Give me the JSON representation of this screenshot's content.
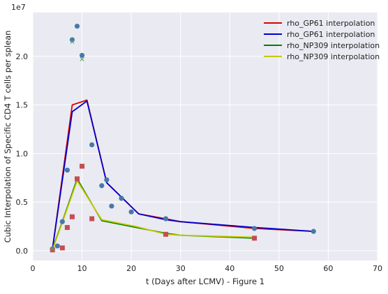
{
  "chart_data": {
    "type": "line",
    "xlabel": "t (Days after LCMV) - Figure 1",
    "ylabel": "Cubic Interpolation of Specific CD4 T cells per splean",
    "y_scale_label": "1e7",
    "xlim": [
      0,
      70
    ],
    "ylim": [
      -0.1,
      2.45
    ],
    "x_ticks": [
      0,
      10,
      20,
      30,
      40,
      50,
      60,
      70
    ],
    "x_tick_labels": [
      "0",
      "10",
      "20",
      "30",
      "40",
      "50",
      "60",
      "70"
    ],
    "y_ticks": [
      0.0,
      0.5,
      1.0,
      1.5,
      2.0
    ],
    "y_tick_labels": [
      "0.0",
      "0.5",
      "1.0",
      "1.5",
      "2.0"
    ],
    "grid": true,
    "legend_position": "top-right",
    "series": [
      {
        "name": "rho_GP61 interpolation",
        "color": "#e00000",
        "x": [
          4,
          8,
          11,
          15,
          21.5,
          27,
          30,
          45,
          57
        ],
        "y": [
          0.02,
          1.5,
          1.55,
          0.7,
          0.38,
          0.33,
          0.3,
          0.23,
          0.2
        ]
      },
      {
        "name": "rho_GP61 interpolation",
        "color": "#0000cc",
        "x": [
          4,
          8,
          11,
          15,
          21.5,
          27,
          30,
          45,
          57
        ],
        "y": [
          0.02,
          1.43,
          1.54,
          0.7,
          0.38,
          0.32,
          0.3,
          0.24,
          0.2
        ]
      },
      {
        "name": "rho_NP309 interpolation",
        "color": "#008000",
        "x": [
          4,
          6,
          9,
          14,
          21,
          27,
          30,
          45
        ],
        "y": [
          0.02,
          0.3,
          0.74,
          0.31,
          0.24,
          0.18,
          0.16,
          0.13
        ]
      },
      {
        "name": "rho_NP309 interpolation",
        "color": "#c8c800",
        "x": [
          4,
          6,
          9,
          14,
          21,
          27,
          30,
          45
        ],
        "y": [
          0.01,
          0.29,
          0.72,
          0.32,
          0.25,
          0.17,
          0.16,
          0.14
        ]
      }
    ],
    "scatter_series": [
      {
        "marker": "circle",
        "color": "#4878a8",
        "x": [
          4,
          5,
          6,
          7,
          8,
          9,
          10,
          12,
          14,
          15,
          16,
          18,
          20,
          27,
          45,
          57
        ],
        "y": [
          0.02,
          0.05,
          0.3,
          0.83,
          2.17,
          2.31,
          2.01,
          1.09,
          0.67,
          0.73,
          0.46,
          0.54,
          0.4,
          0.33,
          0.23,
          0.2
        ]
      },
      {
        "marker": "square",
        "color": "#c44e52",
        "x": [
          4,
          6,
          7,
          8,
          9,
          10,
          12,
          27,
          45
        ],
        "y": [
          0.01,
          0.03,
          0.24,
          0.35,
          0.74,
          0.87,
          0.33,
          0.17,
          0.13
        ]
      },
      {
        "marker": "x",
        "color": "#55a868",
        "x": [
          4,
          8,
          10
        ],
        "y": [
          0.02,
          2.15,
          1.97
        ]
      }
    ]
  }
}
